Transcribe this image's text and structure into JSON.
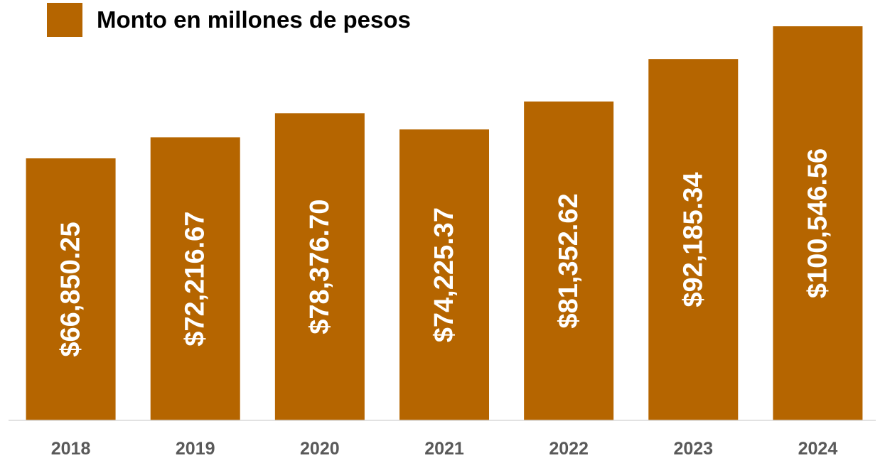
{
  "chart_data": {
    "type": "bar",
    "title": "",
    "xlabel": "",
    "ylabel": "",
    "categories": [
      "2018",
      "2019",
      "2020",
      "2021",
      "2022",
      "2023",
      "2024"
    ],
    "series": [
      {
        "name": "Monto en millones de pesos",
        "values": [
          66850.25,
          72216.67,
          78376.7,
          74225.37,
          81352.62,
          92185.34,
          100546.56
        ],
        "data_labels": [
          "$66,850.25",
          "$72,216.67",
          "$78,376.70",
          "$74,225.37",
          "$81,352.62",
          "$92,185.34",
          "$100,546.56"
        ],
        "color": "#B56500"
      }
    ],
    "ylim": [
      0,
      100546.56
    ],
    "grid": false,
    "legend_position": "top-left",
    "axis_line_color": "#D9D9D9"
  }
}
